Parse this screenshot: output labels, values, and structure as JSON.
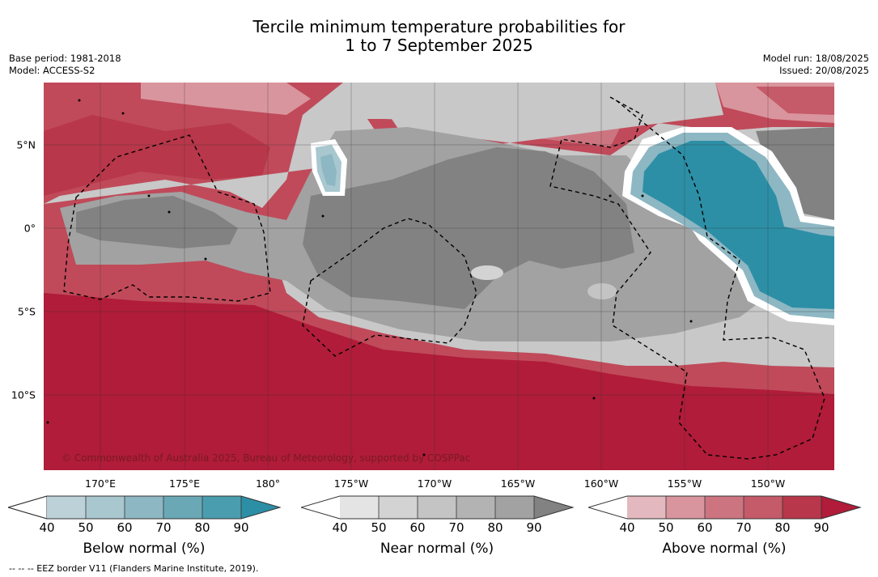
{
  "title_line1": "Tercile minimum temperature probabilities for",
  "title_line2": "1 to 7 September 2025",
  "meta_left": [
    "Base period: 1981-2018",
    "Model: ACCESS-S2"
  ],
  "meta_right": [
    "Model run: 18/08/2025",
    "Issued: 20/08/2025"
  ],
  "map": {
    "lon_range": [
      167,
      184
    ],
    "lat_range": [
      -14.5,
      8.7
    ],
    "lon_ticks": [
      "170°E",
      "175°E",
      "180°",
      "175°W",
      "170°W",
      "165°W",
      "160°W",
      "155°W",
      "150°W"
    ],
    "lat_ticks": [
      "5°N",
      "0°",
      "5°S",
      "10°S"
    ],
    "grid": true,
    "copyright": "© Commonwealth of Australia 2025, Bureau of Meteorology, supported by COSPPac"
  },
  "colorbars": [
    {
      "label": "Below normal (%)",
      "ticks": [
        "40",
        "50",
        "60",
        "70",
        "80",
        "90"
      ],
      "colors": [
        "#ffffff",
        "#bcd1d8",
        "#a8c7cf",
        "#8db7c3",
        "#6aa8b6",
        "#4a9dae",
        "#2c8fa6"
      ]
    },
    {
      "label": "Near normal (%)",
      "ticks": [
        "40",
        "50",
        "60",
        "70",
        "80",
        "90"
      ],
      "colors": [
        "#ffffff",
        "#e4e4e4",
        "#d3d3d3",
        "#c4c4c4",
        "#b3b3b3",
        "#a2a2a2",
        "#828282"
      ]
    },
    {
      "label": "Above normal (%)",
      "ticks": [
        "40",
        "50",
        "60",
        "70",
        "80",
        "90"
      ],
      "colors": [
        "#ffffff",
        "#e3b8be",
        "#d9959e",
        "#cc7581",
        "#c55a68",
        "#b8374a",
        "#b01c39"
      ]
    }
  ],
  "footnote": "--  --  -- EEZ border V11 (Flanders Marine Institute, 2019)."
}
